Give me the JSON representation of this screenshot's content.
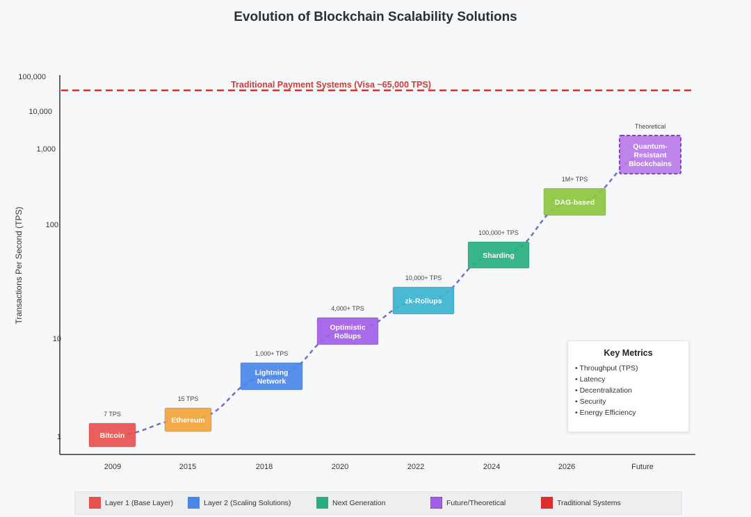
{
  "chart_data": {
    "type": "line",
    "title": "Evolution of Blockchain Scalability Solutions",
    "ylabel": "Transactions Per Second (TPS)",
    "yscale": "log",
    "y_ticks": [
      "100,000",
      "10,000",
      "1,000",
      "100",
      "10",
      "1"
    ],
    "categories": [
      "2009",
      "2015",
      "2018",
      "2020",
      "2022",
      "2024",
      "2026",
      "Future"
    ],
    "reference_line": {
      "label": "Traditional Payment Systems (Visa ~65,000 TPS)",
      "value": 65000,
      "color": "#dd2e2e"
    },
    "points": [
      {
        "x": "2009",
        "label": "Bitcoin",
        "tps_label": "7 TPS",
        "category": "layer1"
      },
      {
        "x": "2015",
        "label": "Ethereum",
        "tps_label": "15 TPS",
        "category": "layer1"
      },
      {
        "x": "2018",
        "label": "Lightning Network",
        "tps_label": "1,000+ TPS",
        "category": "layer2"
      },
      {
        "x": "2020",
        "label": "Optimistic Rollups",
        "tps_label": "4,000+ TPS",
        "category": "future"
      },
      {
        "x": "2022",
        "label": "zk-Rollups",
        "tps_label": "10,000+ TPS",
        "category": "zk"
      },
      {
        "x": "2024",
        "label": "Sharding",
        "tps_label": "100,000+ TPS",
        "category": "nextgen"
      },
      {
        "x": "2026",
        "label": "DAG-based",
        "tps_label": "1M+ TPS",
        "category": "dag"
      },
      {
        "x": "Future",
        "label": "Quantum-Resistant Blockchains",
        "tps_label": "Theoretical",
        "category": "theoretical"
      }
    ],
    "grid": false
  },
  "colors": {
    "layer1": "#e8504f",
    "ethereum": "#f2a53a",
    "layer2": "#4a86e8",
    "future": "#a35ee8",
    "zk": "#3bb4d0",
    "nextgen": "#27b07f",
    "dag": "#8cc63f",
    "theoretical": "#b46be8",
    "trend": "#6a6fd6"
  },
  "key_metrics": {
    "title": "Key Metrics",
    "items": [
      "Throughput (TPS)",
      "Latency",
      "Decentralization",
      "Security",
      "Energy Efficiency"
    ]
  },
  "legend": [
    {
      "label": "Layer 1 (Base Layer)",
      "color": "#e8504f"
    },
    {
      "label": "Layer 2 (Scaling Solutions)",
      "color": "#4a86e8"
    },
    {
      "label": "Next Generation",
      "color": "#27b07f"
    },
    {
      "label": "Future/Theoretical",
      "color": "#a35ee8"
    },
    {
      "label": "Traditional Systems",
      "color": "#dd2e2e"
    }
  ]
}
